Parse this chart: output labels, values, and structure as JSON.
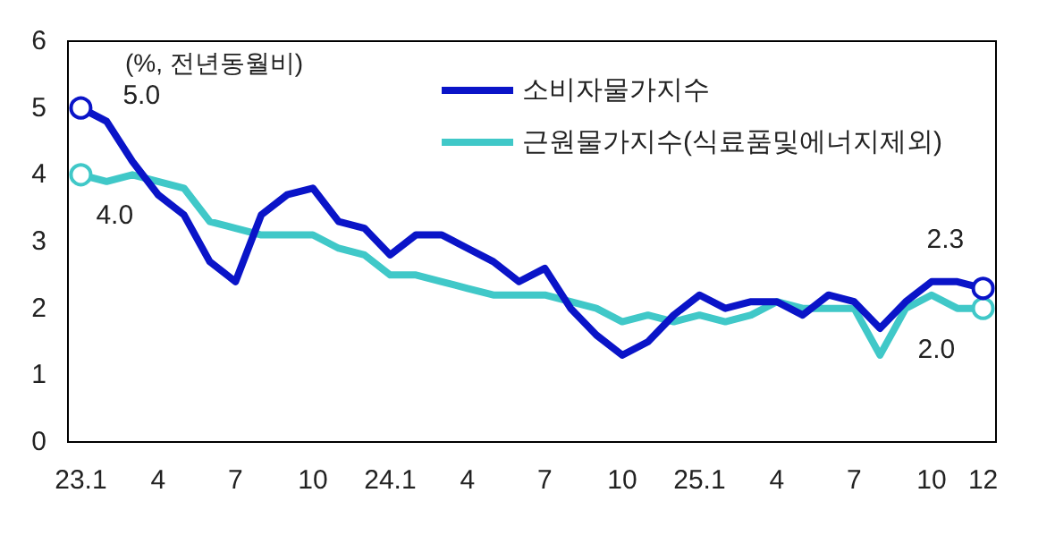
{
  "chart_data": {
    "type": "line",
    "ylabel": "(%, 전년동월비)",
    "categories": [
      "23.1",
      null,
      null,
      "4",
      null,
      null,
      "7",
      null,
      null,
      "10",
      null,
      null,
      "24.1",
      null,
      null,
      "4",
      null,
      null,
      "7",
      null,
      null,
      "10",
      null,
      null,
      "25.1",
      null,
      null,
      "4",
      null,
      null,
      "7",
      null,
      null,
      "10",
      null,
      "12"
    ],
    "series": [
      {
        "name": "소비자물가지수",
        "color": "#0a14c8",
        "values": [
          5.0,
          4.8,
          4.2,
          3.7,
          3.4,
          2.7,
          2.4,
          3.4,
          3.7,
          3.8,
          3.3,
          3.2,
          2.8,
          3.1,
          3.1,
          2.9,
          2.7,
          2.4,
          2.6,
          2.0,
          1.6,
          1.3,
          1.5,
          1.9,
          2.2,
          2.0,
          2.1,
          2.1,
          1.9,
          2.2,
          2.1,
          1.7,
          2.1,
          2.4,
          2.4,
          2.3
        ]
      },
      {
        "name": "근원물가지수(식료품및에너지제외)",
        "color": "#40c8c8",
        "values": [
          4.0,
          3.9,
          4.0,
          3.9,
          3.8,
          3.3,
          3.2,
          3.1,
          3.1,
          3.1,
          2.9,
          2.8,
          2.5,
          2.5,
          2.4,
          2.3,
          2.2,
          2.2,
          2.2,
          2.1,
          2.0,
          1.8,
          1.9,
          1.8,
          1.9,
          1.8,
          1.9,
          2.1,
          2.0,
          2.0,
          2.0,
          1.3,
          2.0,
          2.2,
          2.0,
          2.0
        ]
      }
    ],
    "annotations": [
      {
        "text": "5.0",
        "x": "23.1",
        "y": 5.0
      },
      {
        "text": "4.0",
        "x": "23.1",
        "y": 4.0
      },
      {
        "text": "2.3",
        "x": "12",
        "y": 2.3
      },
      {
        "text": "2.0",
        "x": "12",
        "y": 2.0
      }
    ],
    "ylim": [
      0,
      6
    ],
    "yticks": [
      0,
      1,
      2,
      3,
      4,
      5,
      6
    ],
    "grid": false,
    "legend": "top right",
    "marker": "none",
    "line_style": "solid"
  }
}
